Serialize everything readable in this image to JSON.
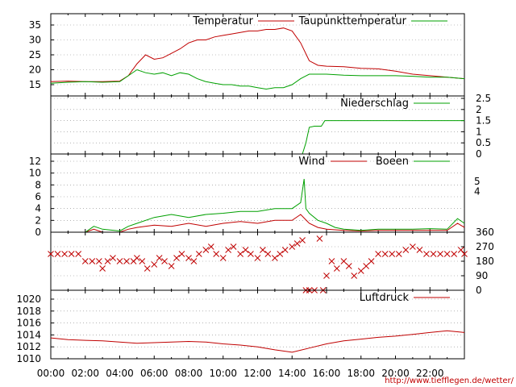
{
  "chart_data": [
    {
      "type": "line",
      "ylim": [
        12,
        38
      ],
      "yticks": [
        15,
        20,
        25,
        30,
        35
      ],
      "grid": true,
      "legend_position": "top",
      "series": [
        {
          "name": "Temperatur",
          "color": "#c00000",
          "values": [
            [
              0,
              16
            ],
            [
              1,
              16.2
            ],
            [
              2,
              16
            ],
            [
              3,
              16
            ],
            [
              4,
              16.2
            ],
            [
              4.5,
              18
            ],
            [
              5,
              22
            ],
            [
              5.5,
              25
            ],
            [
              6,
              23.5
            ],
            [
              6.5,
              24
            ],
            [
              7,
              25.5
            ],
            [
              7.5,
              27
            ],
            [
              8,
              29
            ],
            [
              8.5,
              30
            ],
            [
              9,
              30
            ],
            [
              9.5,
              31
            ],
            [
              10,
              31.5
            ],
            [
              10.5,
              32
            ],
            [
              11,
              32.5
            ],
            [
              11.5,
              33
            ],
            [
              12,
              33
            ],
            [
              12.5,
              33.5
            ],
            [
              13,
              33.5
            ],
            [
              13.5,
              34
            ],
            [
              14,
              33
            ],
            [
              14.5,
              29
            ],
            [
              15,
              23
            ],
            [
              15.5,
              21.5
            ],
            [
              16,
              21.2
            ],
            [
              17,
              21
            ],
            [
              18,
              20.5
            ],
            [
              19,
              20.3
            ],
            [
              20,
              19.5
            ],
            [
              21,
              18.5
            ],
            [
              22,
              18
            ],
            [
              23,
              17.5
            ],
            [
              24,
              17
            ]
          ]
        },
        {
          "name": "Taupunkttemperatur",
          "color": "#00a000",
          "values": [
            [
              0,
              15.5
            ],
            [
              1,
              15.8
            ],
            [
              2,
              16
            ],
            [
              3,
              15.8
            ],
            [
              4,
              16
            ],
            [
              4.5,
              18
            ],
            [
              5,
              20
            ],
            [
              5.5,
              19
            ],
            [
              6,
              18.5
            ],
            [
              6.5,
              19
            ],
            [
              7,
              18
            ],
            [
              7.5,
              19
            ],
            [
              8,
              18.5
            ],
            [
              8.5,
              17
            ],
            [
              9,
              16
            ],
            [
              9.5,
              15.5
            ],
            [
              10,
              15
            ],
            [
              10.5,
              15
            ],
            [
              11,
              14.5
            ],
            [
              11.5,
              14.5
            ],
            [
              12,
              14
            ],
            [
              12.5,
              13.5
            ],
            [
              13,
              14
            ],
            [
              13.5,
              14
            ],
            [
              14,
              15
            ],
            [
              14.5,
              17
            ],
            [
              15,
              18.5
            ],
            [
              16,
              18.5
            ],
            [
              17,
              18.2
            ],
            [
              18,
              18
            ],
            [
              19,
              18
            ],
            [
              20,
              18
            ],
            [
              21,
              17.8
            ],
            [
              22,
              17.5
            ],
            [
              23,
              17.5
            ],
            [
              24,
              17
            ]
          ]
        }
      ]
    },
    {
      "type": "line",
      "ylim": [
        0,
        2.5
      ],
      "yticks": [
        "2.5",
        "2",
        "1.5",
        "1",
        "0.5",
        "0"
      ],
      "grid": true,
      "legend_position": "top-right",
      "series": [
        {
          "name": "Niederschlag",
          "color": "#00a000",
          "values": [
            [
              0,
              0
            ],
            [
              14.6,
              0
            ],
            [
              14.8,
              0.5
            ],
            [
              15,
              1.2
            ],
            [
              15.3,
              1.25
            ],
            [
              15.7,
              1.25
            ],
            [
              15.9,
              1.5
            ],
            [
              24,
              1.5
            ]
          ]
        }
      ]
    },
    {
      "type": "line",
      "ylim": [
        0,
        12
      ],
      "yticks": [
        0,
        2,
        4,
        6,
        8,
        10,
        12
      ],
      "right_ticks": [
        {
          "label": "5",
          "y": 8.6
        },
        {
          "label": "4",
          "y": 6.9
        }
      ],
      "grid": true,
      "legend_position": "top-right",
      "series": [
        {
          "name": "Wind",
          "color": "#c00000",
          "values": [
            [
              0,
              0
            ],
            [
              2,
              0
            ],
            [
              2.5,
              0.5
            ],
            [
              3,
              0
            ],
            [
              4,
              0
            ],
            [
              4.5,
              0.5
            ],
            [
              5,
              0.8
            ],
            [
              6,
              1.2
            ],
            [
              7,
              1
            ],
            [
              8,
              1.5
            ],
            [
              9,
              1
            ],
            [
              10,
              1.5
            ],
            [
              11,
              1.8
            ],
            [
              12,
              1.5
            ],
            [
              13,
              2
            ],
            [
              14,
              2
            ],
            [
              14.5,
              3
            ],
            [
              15,
              1.5
            ],
            [
              15.5,
              0.8
            ],
            [
              16,
              0.5
            ],
            [
              17,
              0.3
            ],
            [
              18,
              0.2
            ],
            [
              19,
              0.3
            ],
            [
              20,
              0.3
            ],
            [
              21,
              0.3
            ],
            [
              22,
              0.3
            ],
            [
              23,
              0.3
            ],
            [
              23.6,
              1.5
            ],
            [
              24,
              0.8
            ]
          ]
        },
        {
          "name": "Boeen",
          "color": "#00a000",
          "values": [
            [
              0,
              0
            ],
            [
              2,
              0
            ],
            [
              2.5,
              1
            ],
            [
              3,
              0.5
            ],
            [
              4,
              0.2
            ],
            [
              4.5,
              1
            ],
            [
              5,
              1.5
            ],
            [
              6,
              2.5
            ],
            [
              7,
              3
            ],
            [
              8,
              2.5
            ],
            [
              9,
              3
            ],
            [
              10,
              3.2
            ],
            [
              11,
              3.5
            ],
            [
              12,
              3.5
            ],
            [
              13,
              4
            ],
            [
              14,
              4
            ],
            [
              14.5,
              5
            ],
            [
              14.7,
              9
            ],
            [
              14.8,
              4
            ],
            [
              15,
              3.2
            ],
            [
              15.5,
              2
            ],
            [
              16,
              1.5
            ],
            [
              16.5,
              0.8
            ],
            [
              17,
              0.5
            ],
            [
              18,
              0.3
            ],
            [
              19,
              0.5
            ],
            [
              20,
              0.5
            ],
            [
              21,
              0.5
            ],
            [
              22,
              0.6
            ],
            [
              23,
              0.5
            ],
            [
              23.6,
              2.3
            ],
            [
              24,
              1.5
            ]
          ]
        }
      ]
    },
    {
      "type": "scatter",
      "ylim": [
        0,
        360
      ],
      "yticks": [
        "360",
        "270",
        "180",
        "90",
        "0"
      ],
      "grid": true,
      "marker": "x",
      "color": "#c00000",
      "values": [
        [
          0,
          225
        ],
        [
          0.4,
          225
        ],
        [
          0.8,
          225
        ],
        [
          1.2,
          225
        ],
        [
          1.6,
          225
        ],
        [
          2,
          180
        ],
        [
          2.4,
          180
        ],
        [
          2.8,
          180
        ],
        [
          3,
          135
        ],
        [
          3.3,
          180
        ],
        [
          3.6,
          200
        ],
        [
          4,
          180
        ],
        [
          4.4,
          180
        ],
        [
          4.8,
          180
        ],
        [
          5,
          200
        ],
        [
          5.3,
          180
        ],
        [
          5.6,
          135
        ],
        [
          6,
          160
        ],
        [
          6.3,
          200
        ],
        [
          6.6,
          180
        ],
        [
          7,
          150
        ],
        [
          7.3,
          200
        ],
        [
          7.6,
          225
        ],
        [
          8,
          200
        ],
        [
          8.3,
          180
        ],
        [
          8.6,
          225
        ],
        [
          9,
          250
        ],
        [
          9.3,
          270
        ],
        [
          9.6,
          225
        ],
        [
          10,
          200
        ],
        [
          10.3,
          250
        ],
        [
          10.6,
          270
        ],
        [
          11,
          225
        ],
        [
          11.3,
          250
        ],
        [
          11.6,
          225
        ],
        [
          12,
          200
        ],
        [
          12.3,
          250
        ],
        [
          12.6,
          225
        ],
        [
          13,
          200
        ],
        [
          13.3,
          225
        ],
        [
          13.6,
          250
        ],
        [
          14,
          270
        ],
        [
          14.3,
          290
        ],
        [
          14.6,
          310
        ],
        [
          14.8,
          0
        ],
        [
          15,
          0
        ],
        [
          15.3,
          0
        ],
        [
          15.6,
          320
        ],
        [
          15.8,
          0
        ],
        [
          16,
          90
        ],
        [
          16.3,
          180
        ],
        [
          16.6,
          135
        ],
        [
          17,
          180
        ],
        [
          17.3,
          150
        ],
        [
          17.6,
          90
        ],
        [
          18,
          120
        ],
        [
          18.3,
          150
        ],
        [
          18.6,
          180
        ],
        [
          19,
          225
        ],
        [
          19.4,
          225
        ],
        [
          19.8,
          225
        ],
        [
          20.2,
          225
        ],
        [
          20.6,
          250
        ],
        [
          21,
          270
        ],
        [
          21.4,
          250
        ],
        [
          21.8,
          225
        ],
        [
          22.2,
          225
        ],
        [
          22.6,
          225
        ],
        [
          23,
          225
        ],
        [
          23.4,
          225
        ],
        [
          23.8,
          250
        ],
        [
          24,
          225
        ]
      ]
    },
    {
      "type": "line",
      "ylim": [
        1010,
        1022
      ],
      "yticks": [
        1010,
        1012,
        1014,
        1016,
        1018,
        1020
      ],
      "grid": true,
      "legend_position": "top-right",
      "series": [
        {
          "name": "Luftdruck",
          "color": "#c00000",
          "values": [
            [
              0,
              1013.5
            ],
            [
              1,
              1013.2
            ],
            [
              2,
              1013.1
            ],
            [
              3,
              1013
            ],
            [
              4,
              1012.8
            ],
            [
              5,
              1012.6
            ],
            [
              6,
              1012.7
            ],
            [
              7,
              1012.8
            ],
            [
              8,
              1012.9
            ],
            [
              9,
              1012.8
            ],
            [
              10,
              1012.5
            ],
            [
              11,
              1012.3
            ],
            [
              12,
              1012
            ],
            [
              13,
              1011.5
            ],
            [
              14,
              1011.1
            ],
            [
              15,
              1011.8
            ],
            [
              16,
              1012.5
            ],
            [
              17,
              1013
            ],
            [
              18,
              1013.3
            ],
            [
              19,
              1013.6
            ],
            [
              20,
              1013.8
            ],
            [
              21,
              1014.1
            ],
            [
              22,
              1014.4
            ],
            [
              23,
              1014.7
            ],
            [
              24,
              1014.4
            ]
          ]
        }
      ]
    }
  ],
  "x_axis": {
    "tick_labels": [
      "00:00",
      "02:00",
      "04:00",
      "06:00",
      "08:00",
      "10:00",
      "12:00",
      "14:00",
      "16:00",
      "18:00",
      "20:00",
      "22:00"
    ],
    "xlim": [
      0,
      24
    ]
  },
  "footer": {
    "url": "http://www.tiefflegen.de/wetter/"
  }
}
